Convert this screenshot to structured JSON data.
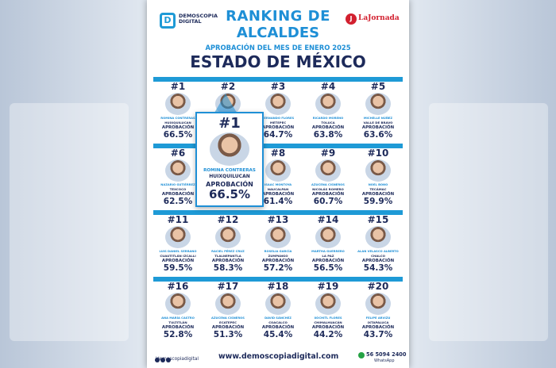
{
  "header": {
    "brand": "DEMOSCOPIA DIGITAL",
    "brand_mark": "D",
    "partner": "LaJornada",
    "partner_mark": "J",
    "title_line1": "RANKING DE",
    "title_line2": "ALCALDES",
    "subtitle": "APROBACIÓN DEL MES DE ENERO 2025",
    "state": "ESTADO DE MÉXICO"
  },
  "aprob_label": "APROBACIÓN",
  "rows": [
    {
      "cells": [
        {
          "rank": "#1",
          "name": "ROMINA CONTRERAS",
          "muni": "HUIXQUILUCAN",
          "value": "66.5%"
        },
        {
          "rank": "#2",
          "name": "",
          "muni": "",
          "value": ""
        },
        {
          "rank": "#3",
          "name": "FERNANDO FLORES",
          "muni": "METEPEC",
          "value": "64.7%"
        },
        {
          "rank": "#4",
          "name": "RICARDO MORENO",
          "muni": "TOLUCA",
          "value": "63.8%"
        },
        {
          "rank": "#5",
          "name": "MICHELLE NÚÑEZ",
          "muni": "VALLE DE BRAVO",
          "value": "63.6%"
        }
      ]
    },
    {
      "cells": [
        {
          "rank": "#6",
          "name": "NAZARIO GUTIÉRREZ",
          "muni": "TEXCOCO",
          "value": "62.5%"
        },
        {
          "rank": "#7",
          "name": "",
          "muni": "",
          "value": ""
        },
        {
          "rank": "#8",
          "name": "ISAAC MONTOYA",
          "muni": "NAUCALPAN",
          "value": "61.4%"
        },
        {
          "rank": "#9",
          "name": "AZUCENA CISNEROS",
          "muni": "NICOLÁS ROMERO",
          "value": "60.7%"
        },
        {
          "rank": "#10",
          "name": "NOEL BONO",
          "muni": "TECÁMAC",
          "value": "59.9%"
        }
      ]
    },
    {
      "cells": [
        {
          "rank": "#11",
          "name": "LUIS DANIEL SERRANO",
          "muni": "CUAUTITLÁN IZCALLI",
          "value": "59.5%"
        },
        {
          "rank": "#12",
          "name": "RACIEL PÉREZ CRUZ",
          "muni": "TLALNEPANTLA",
          "value": "58.3%"
        },
        {
          "rank": "#13",
          "name": "ROSELIA GARCÍA",
          "muni": "ZUMPANGO",
          "value": "57.2%"
        },
        {
          "rank": "#14",
          "name": "MARTHA GUERRERO",
          "muni": "LA PAZ",
          "value": "56.5%"
        },
        {
          "rank": "#15",
          "name": "ALAN VELASCO ALBERTO",
          "muni": "CHALCO",
          "value": "54.3%"
        }
      ]
    },
    {
      "cells": [
        {
          "rank": "#16",
          "name": "ANA MARÍA CASTRO",
          "muni": "TULTITLÁN",
          "value": "52.8%"
        },
        {
          "rank": "#17",
          "name": "AZUCENA CISNEROS",
          "muni": "ECATEPEC",
          "value": "51.3%"
        },
        {
          "rank": "#18",
          "name": "DAVID SÁNCHEZ",
          "muni": "COACALCO",
          "value": "45.4%"
        },
        {
          "rank": "#19",
          "name": "XÓCHITL FLORES",
          "muni": "CHIMALHUACÁN",
          "value": "44.2%"
        },
        {
          "rank": "#20",
          "name": "FELIPE ARVIZU",
          "muni": "IXTAPALUCA",
          "value": "43.7%"
        }
      ]
    }
  ],
  "feature": {
    "rank": "#1",
    "name": "ROMINA CONTRERAS",
    "muni": "HUIXQUILUCAN",
    "value": "66.5%"
  },
  "footer": {
    "handle": "/demoscopiadigital",
    "site": "www.demoscopiadigital.com",
    "phone": "56 5094 2400",
    "wa_label": "WhatsApp"
  },
  "colors": {
    "accent": "#1e8fd6",
    "navy": "#1d2a5a",
    "red": "#d2202f"
  }
}
